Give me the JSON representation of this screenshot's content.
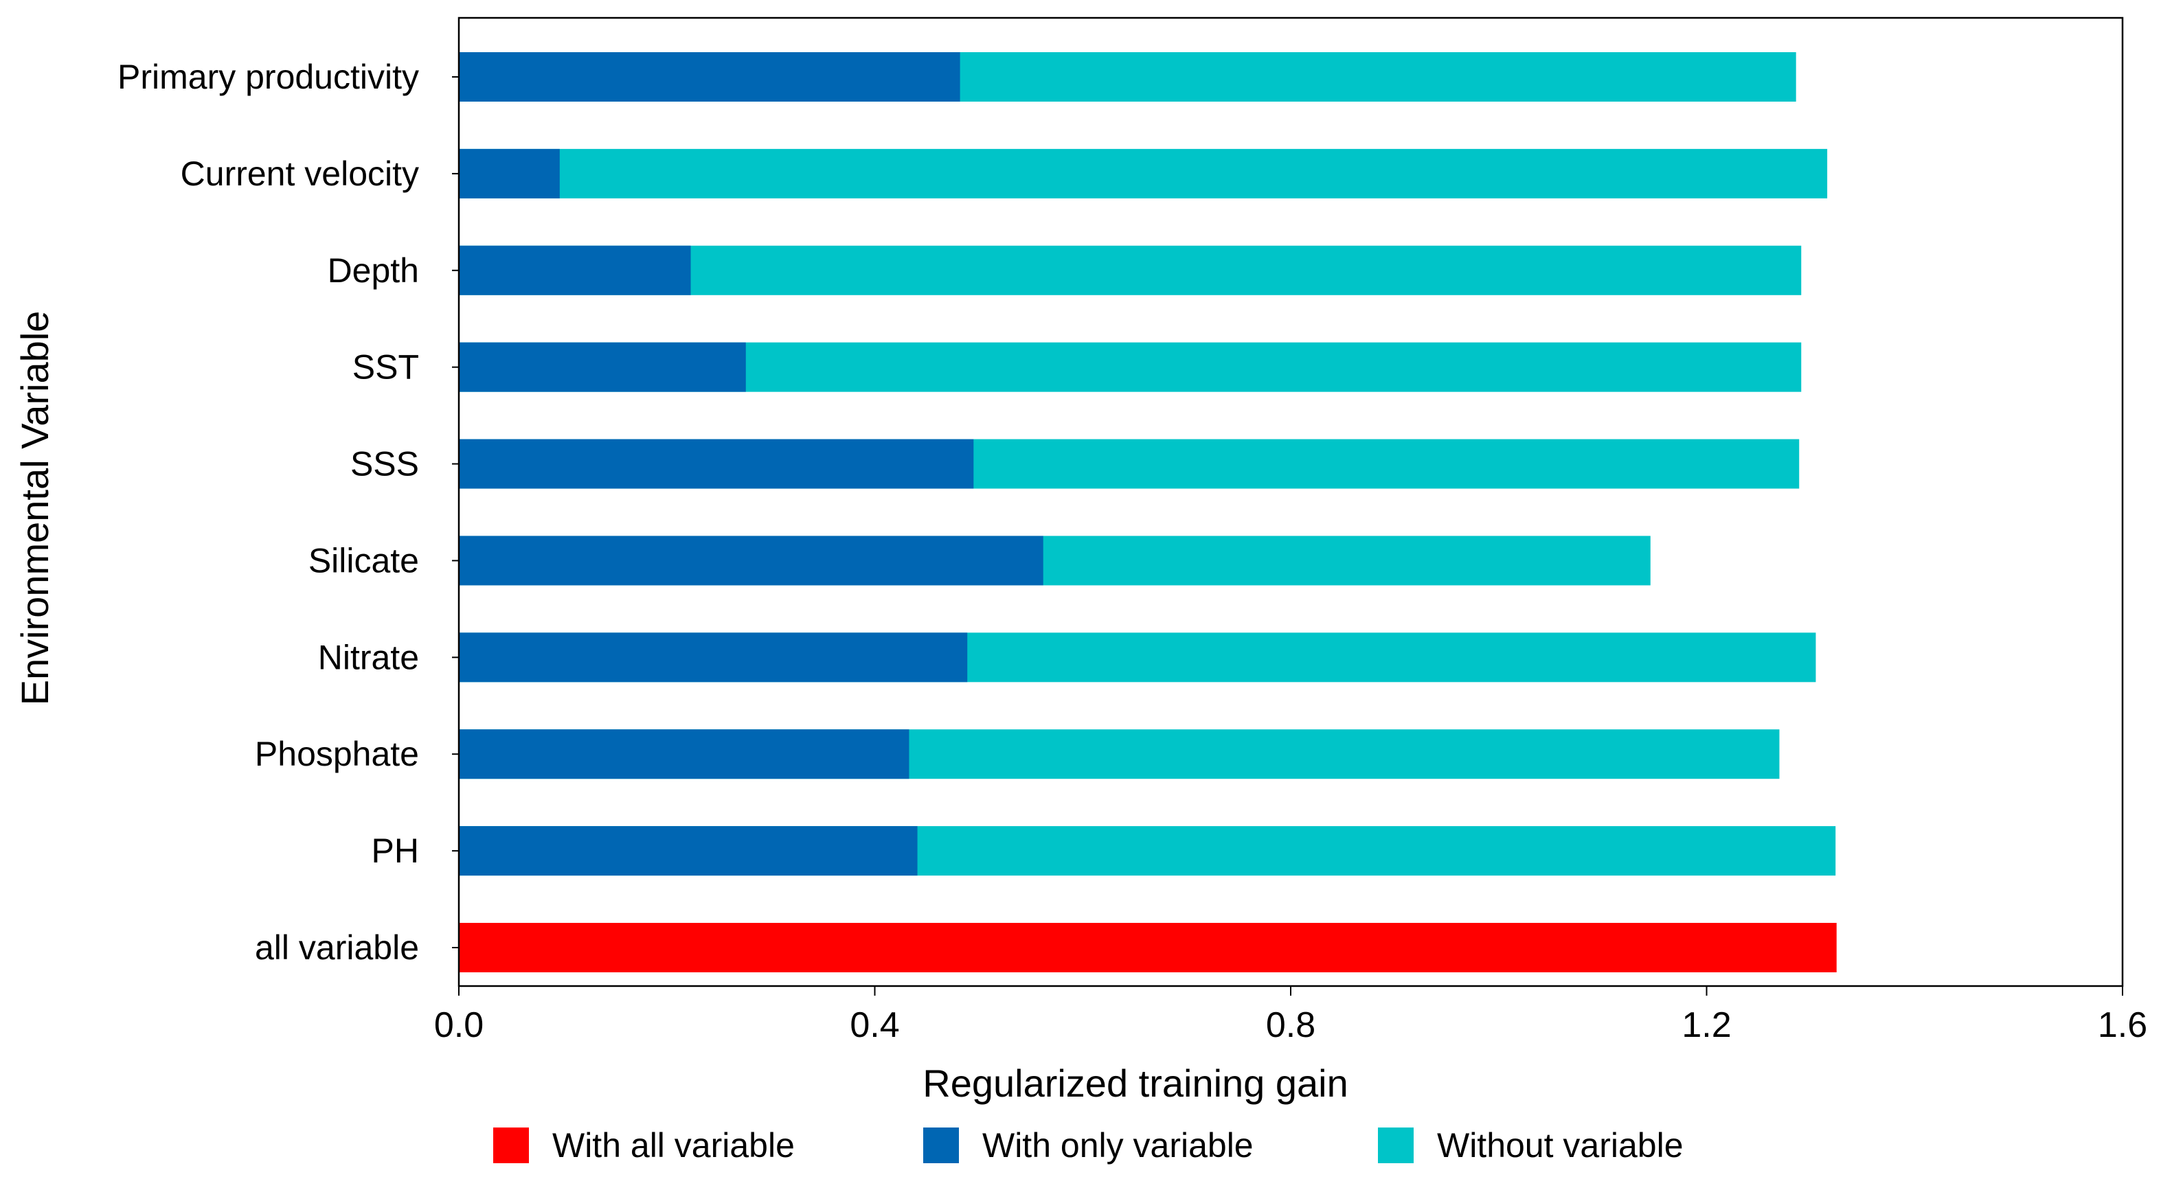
{
  "chart_data": {
    "type": "bar",
    "orientation": "horizontal",
    "title": "",
    "xlabel": "Regularized training gain",
    "ylabel": "Environmental Variable",
    "xlim": [
      0,
      1.6
    ],
    "xticks": [
      0.0,
      0.4,
      0.8,
      1.2,
      1.6
    ],
    "xtick_labels": [
      "0.0",
      "0.4",
      "0.8",
      "1.2",
      "1.6"
    ],
    "grid": false,
    "legend_position": "bottom",
    "categories": [
      "Primary productivity",
      "Current velocity",
      "Depth",
      "SST",
      "SSS",
      "Silicate",
      "Nitrate",
      "Phosphate",
      "PH",
      "all variable"
    ],
    "series": [
      {
        "name": "With all variable",
        "color": "#FF0000",
        "values": [
          null,
          null,
          null,
          null,
          null,
          null,
          null,
          null,
          null,
          1.325
        ]
      },
      {
        "name": "With only variable",
        "color": "#0066B3",
        "values": [
          0.482,
          0.097,
          0.223,
          0.276,
          0.495,
          0.562,
          0.489,
          0.433,
          0.441,
          null
        ]
      },
      {
        "name": "Without variable",
        "color": "#00C4C8",
        "values": [
          1.286,
          1.316,
          1.291,
          1.291,
          1.289,
          1.146,
          1.305,
          1.27,
          1.324,
          null
        ]
      }
    ]
  }
}
